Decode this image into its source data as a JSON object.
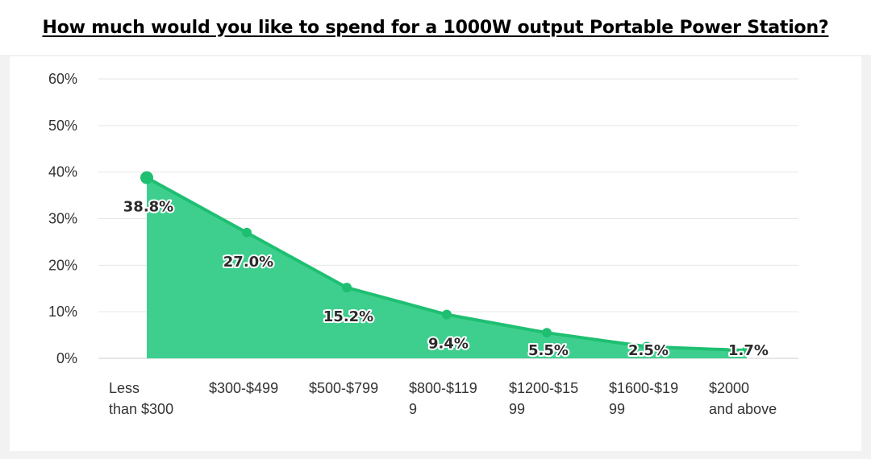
{
  "page": {
    "title": "How much would you like to spend for a 1000W output Portable Power Station?"
  },
  "chart_data": {
    "type": "area",
    "title": "How much would you like to spend for a 1000W output Portable Power Station?",
    "categories": [
      [
        "Less",
        "than $300"
      ],
      [
        "$300-$499"
      ],
      [
        "$500-$799"
      ],
      [
        "$800-$119",
        "9"
      ],
      [
        "$1200-$15",
        "99"
      ],
      [
        "$1600-$19",
        "99"
      ],
      [
        "$2000",
        "and above"
      ]
    ],
    "values": [
      38.8,
      27.0,
      15.2,
      9.4,
      5.5,
      2.5,
      1.7
    ],
    "value_labels": [
      "38.8%",
      "27.0%",
      "15.2%",
      "9.4%",
      "5.5%",
      "2.5%",
      "1.7%"
    ],
    "y_ticks": [
      0,
      10,
      20,
      30,
      40,
      50,
      60
    ],
    "y_tick_labels": [
      "0%",
      "10%",
      "20%",
      "30%",
      "40%",
      "50%",
      "60%"
    ],
    "ylim": [
      0,
      60
    ],
    "xlabel": "",
    "ylabel": "",
    "grid": true,
    "colors": {
      "fill": "#3ecf8e",
      "line": "#1fbf72",
      "grid": "#e6e6e6",
      "axis": "#cccccc"
    }
  }
}
